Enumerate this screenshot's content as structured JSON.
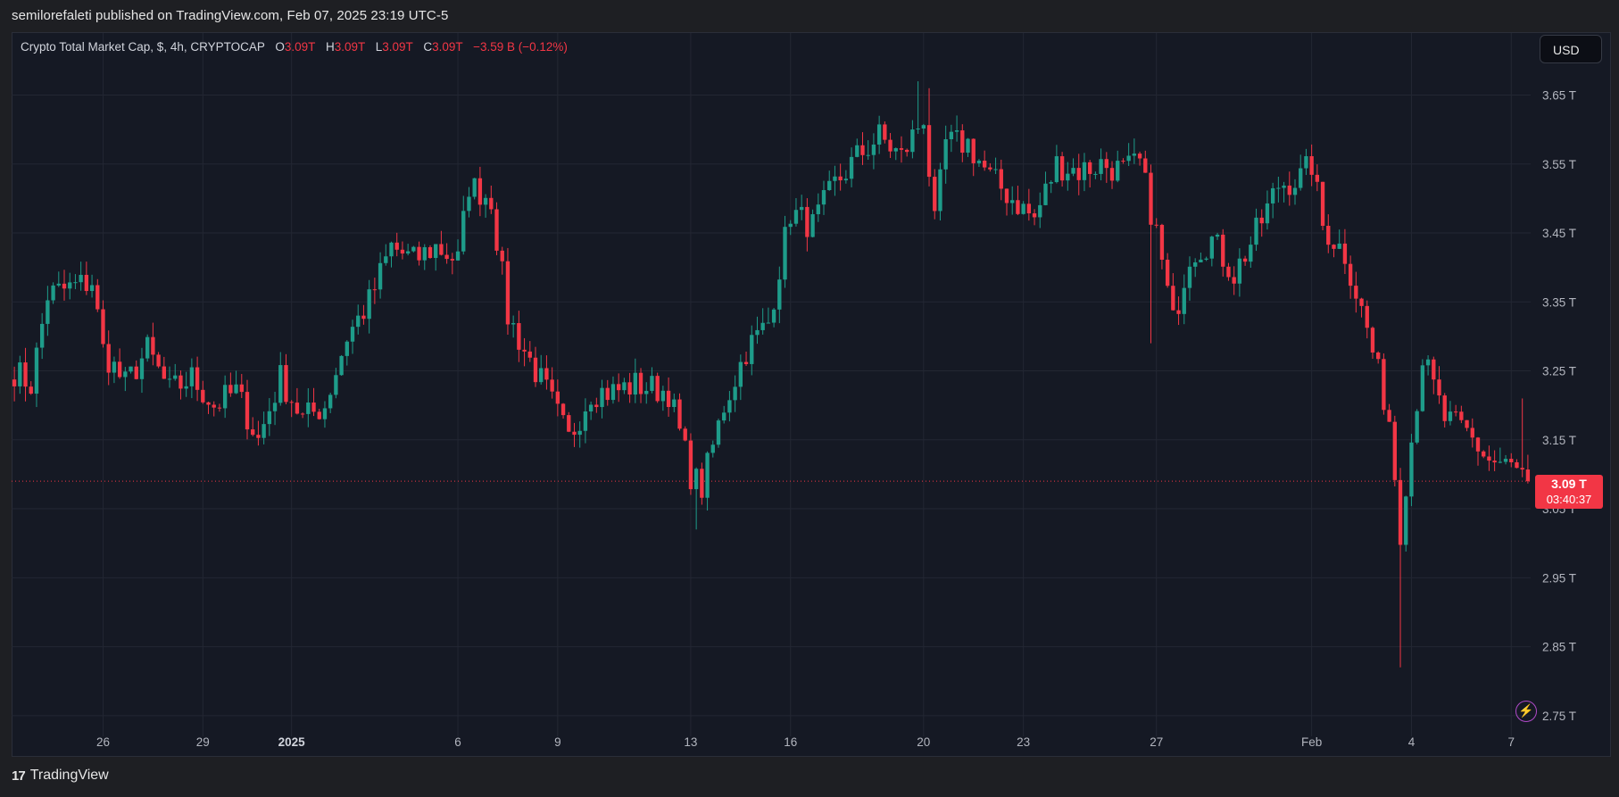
{
  "header": {
    "published": "semilorefaleti published on TradingView.com, Feb 07, 2025 23:19 UTC-5"
  },
  "legend": {
    "symbol": "Crypto Total Market Cap, $, 4h, CRYPTOCAP",
    "o_label": "O",
    "o_value": "3.09T",
    "h_label": "H",
    "h_value": "3.09T",
    "l_label": "L",
    "l_value": "3.09T",
    "c_label": "C",
    "c_value": "3.09T",
    "change": "−3.59 B (−0.12%)"
  },
  "currency_button": "USD",
  "price_badge": {
    "price": "3.09 T",
    "countdown": "03:40:37"
  },
  "footer": {
    "brand_mark": "17",
    "brand": "TradingView"
  },
  "colors": {
    "up": "#1e9c8a",
    "down": "#f23645",
    "background": "#151924",
    "grid": "#232733",
    "axis_text": "#b2b5be",
    "alert_icon": "#d164e8"
  },
  "icons": {
    "alert": "lightning-bolt-icon"
  },
  "chart_data": {
    "type": "candlestick",
    "title": "Crypto Total Market Cap, $, 4h, CRYPTOCAP",
    "interval": "4h",
    "ylim": [
      2.72,
      3.74
    ],
    "y_ticks": [
      "3.65 T",
      "3.55 T",
      "3.45 T",
      "3.35 T",
      "3.25 T",
      "3.15 T",
      "3.05 T",
      "2.95 T",
      "2.85 T",
      "2.75 T"
    ],
    "y_tick_values": [
      3.65,
      3.55,
      3.45,
      3.35,
      3.25,
      3.15,
      3.05,
      2.95,
      2.85,
      2.75
    ],
    "x_ticks": [
      "26",
      "29",
      "2025",
      "6",
      "9",
      "13",
      "16",
      "20",
      "23",
      "27",
      "Feb",
      "4",
      "7"
    ],
    "x_tick_bar_index": [
      16,
      34,
      50,
      80,
      98,
      122,
      140,
      164,
      182,
      206,
      234,
      252,
      270
    ],
    "bold_x_ticks": [
      "2025"
    ],
    "grid": true,
    "last_price": 3.09,
    "path_points": [
      [
        0,
        3.25
      ],
      [
        3,
        3.23
      ],
      [
        6,
        3.36
      ],
      [
        10,
        3.37
      ],
      [
        14,
        3.38
      ],
      [
        16,
        3.28
      ],
      [
        20,
        3.23
      ],
      [
        24,
        3.28
      ],
      [
        28,
        3.22
      ],
      [
        32,
        3.24
      ],
      [
        36,
        3.2
      ],
      [
        40,
        3.22
      ],
      [
        44,
        3.15
      ],
      [
        48,
        3.24
      ],
      [
        52,
        3.18
      ],
      [
        56,
        3.2
      ],
      [
        60,
        3.3
      ],
      [
        64,
        3.35
      ],
      [
        68,
        3.43
      ],
      [
        72,
        3.41
      ],
      [
        76,
        3.43
      ],
      [
        80,
        3.41
      ],
      [
        82,
        3.52
      ],
      [
        86,
        3.5
      ],
      [
        89,
        3.33
      ],
      [
        92,
        3.28
      ],
      [
        96,
        3.22
      ],
      [
        100,
        3.15
      ],
      [
        104,
        3.22
      ],
      [
        108,
        3.22
      ],
      [
        112,
        3.23
      ],
      [
        118,
        3.22
      ],
      [
        122,
        3.1
      ],
      [
        124,
        3.08
      ],
      [
        128,
        3.2
      ],
      [
        132,
        3.28
      ],
      [
        136,
        3.32
      ],
      [
        140,
        3.48
      ],
      [
        144,
        3.46
      ],
      [
        148,
        3.52
      ],
      [
        152,
        3.56
      ],
      [
        156,
        3.59
      ],
      [
        160,
        3.56
      ],
      [
        164,
        3.62
      ],
      [
        166,
        3.46
      ],
      [
        168,
        3.58
      ],
      [
        172,
        3.58
      ],
      [
        176,
        3.53
      ],
      [
        180,
        3.5
      ],
      [
        184,
        3.47
      ],
      [
        188,
        3.55
      ],
      [
        192,
        3.54
      ],
      [
        196,
        3.55
      ],
      [
        200,
        3.54
      ],
      [
        203,
        3.55
      ],
      [
        206,
        3.45
      ],
      [
        209,
        3.32
      ],
      [
        212,
        3.42
      ],
      [
        216,
        3.44
      ],
      [
        220,
        3.39
      ],
      [
        224,
        3.45
      ],
      [
        228,
        3.52
      ],
      [
        232,
        3.53
      ],
      [
        234,
        3.55
      ],
      [
        236,
        3.46
      ],
      [
        240,
        3.42
      ],
      [
        244,
        3.31
      ],
      [
        248,
        3.18
      ],
      [
        250,
        3.02
      ],
      [
        251,
        3.09
      ],
      [
        254,
        3.27
      ],
      [
        258,
        3.18
      ],
      [
        262,
        3.16
      ],
      [
        266,
        3.12
      ],
      [
        270,
        3.11
      ],
      [
        273,
        3.09
      ]
    ],
    "special_wicks": [
      {
        "bar": 123,
        "low": 3.02
      },
      {
        "bar": 163,
        "high": 3.67
      },
      {
        "bar": 165,
        "high": 3.66
      },
      {
        "bar": 205,
        "low": 3.29
      },
      {
        "bar": 250,
        "low": 2.82
      },
      {
        "bar": 272,
        "high": 3.21
      }
    ]
  }
}
